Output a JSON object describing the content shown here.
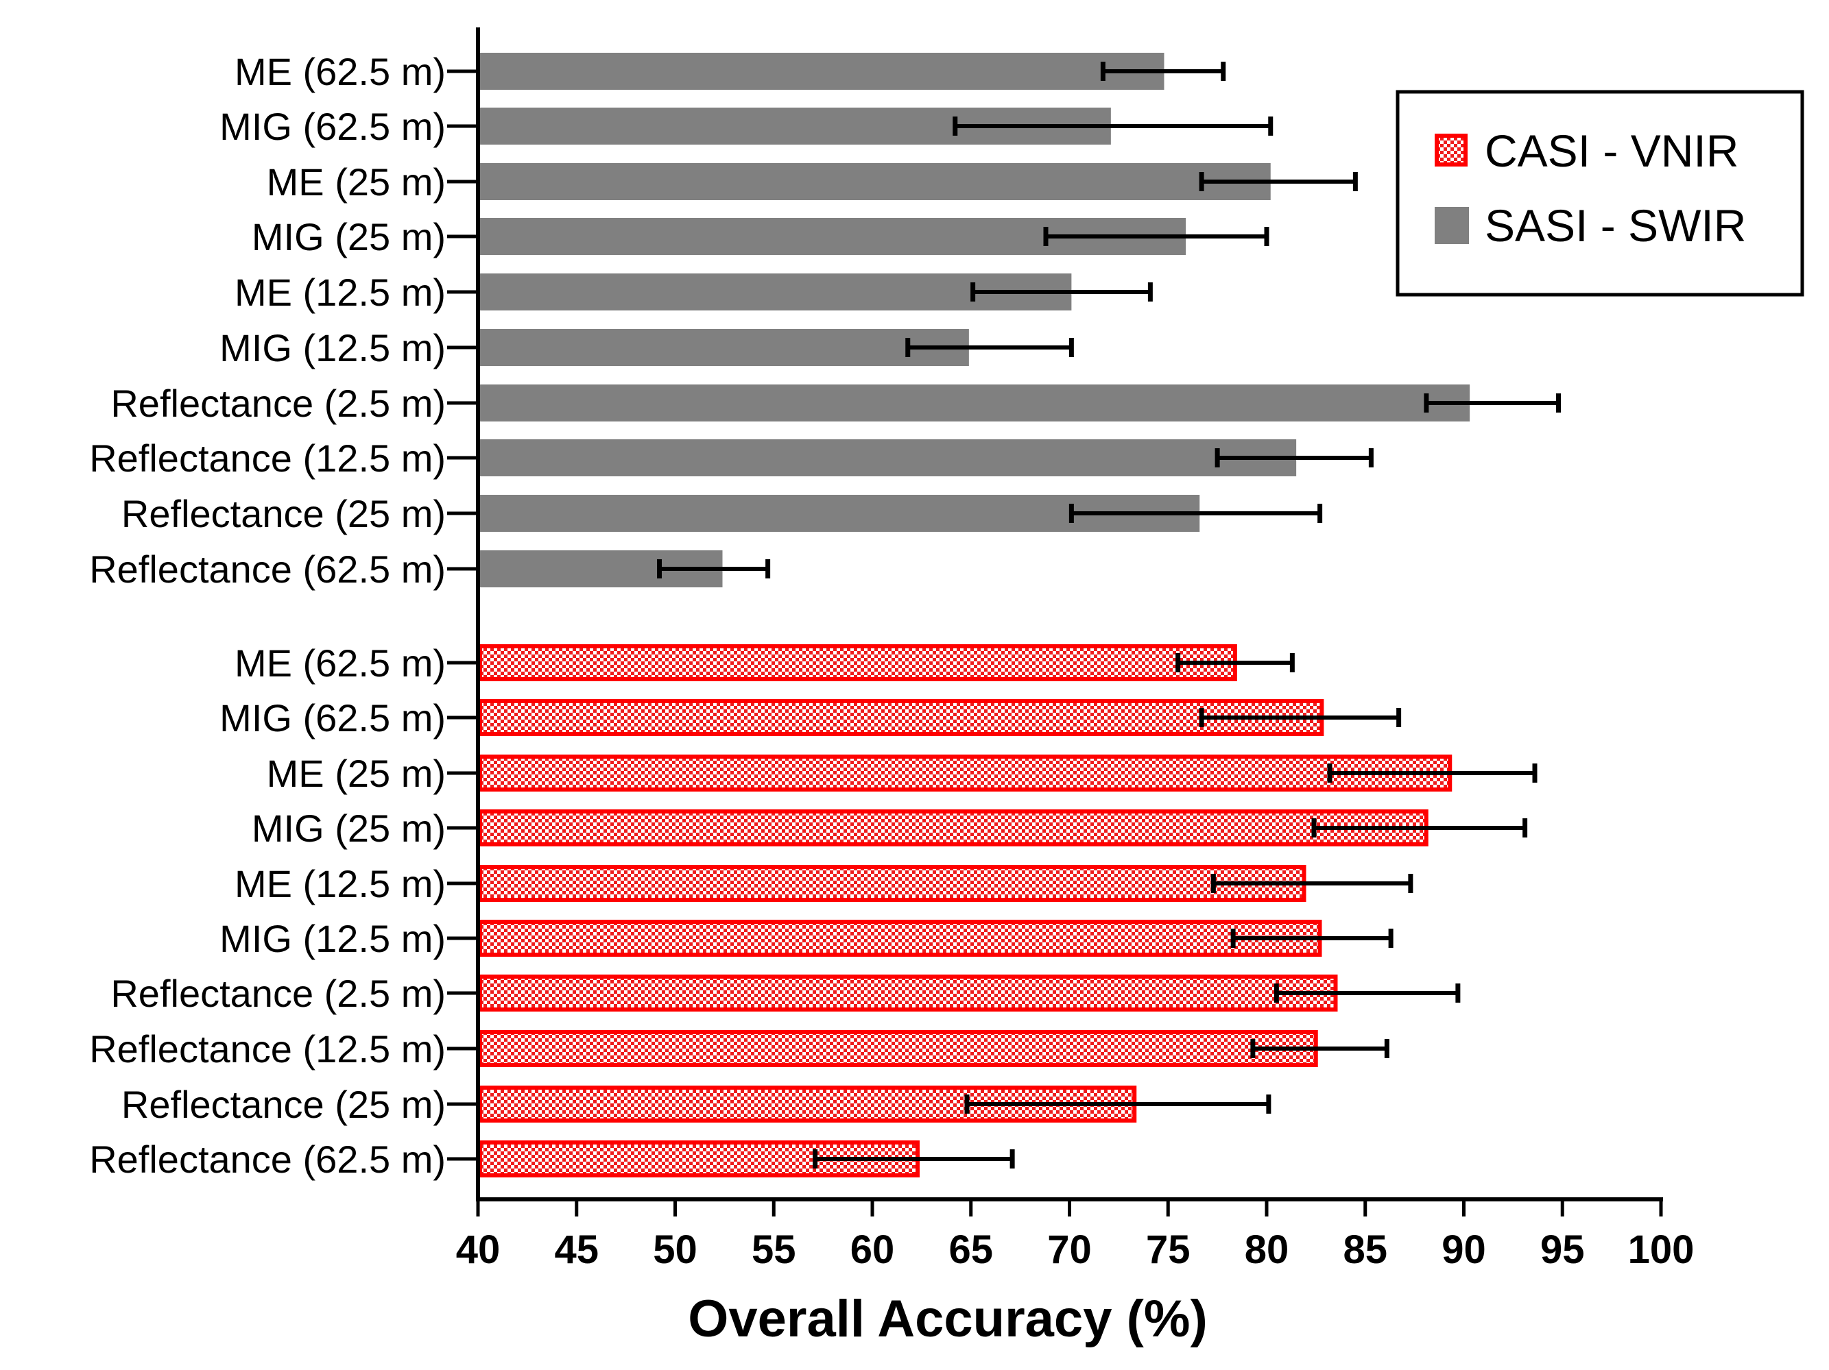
{
  "chart_data": {
    "type": "bar",
    "orientation": "horizontal",
    "title": "",
    "xlabel": "Overall Accuracy (%)",
    "ylabel": "",
    "xlim": [
      40,
      100
    ],
    "xticks": [
      "40",
      "45",
      "50",
      "55",
      "60",
      "65",
      "70",
      "75",
      "80",
      "85",
      "90",
      "95",
      "100"
    ],
    "grid": false,
    "legend_position": "top-right",
    "colors": {
      "casi_fill": "#ffffff",
      "casi_pattern": "#ee1c1c",
      "casi_border": "#ff0000",
      "sasi_fill": "#808080",
      "axis": "#000000"
    },
    "series": [
      {
        "name": "SASI - SWIR",
        "categories": [
          "ME (62.5 m)",
          "MIG (62.5 m)",
          "ME (25 m)",
          "MIG (25 m)",
          "ME (12.5 m)",
          "MIG (12.5 m)",
          "Reflectance (2.5 m)",
          "Reflectance (12.5 m)",
          "Reflectance (25 m)",
          "Reflectance (62.5 m)"
        ],
        "values": [
          74.8,
          72.1,
          80.2,
          75.9,
          70.1,
          64.9,
          90.3,
          81.5,
          76.6,
          52.4
        ],
        "error_low": [
          71.7,
          64.2,
          76.7,
          68.8,
          65.1,
          61.8,
          88.1,
          77.5,
          70.1,
          49.2
        ],
        "error_high": [
          77.8,
          80.2,
          84.5,
          80.0,
          74.1,
          70.1,
          94.8,
          85.3,
          82.7,
          54.7
        ]
      },
      {
        "name": "CASI - VNIR",
        "categories": [
          "ME (62.5 m)",
          "MIG (62.5 m)",
          "ME (25 m)",
          "MIG (25 m)",
          "ME (12.5 m)",
          "MIG (12.5 m)",
          "Reflectance (2.5 m)",
          "Reflectance (12.5 m)",
          "Reflectance (25 m)",
          "Reflectance (62.5 m)"
        ],
        "values": [
          78.5,
          82.9,
          89.4,
          88.2,
          82.0,
          82.8,
          83.6,
          82.6,
          73.4,
          62.4
        ],
        "error_low": [
          75.5,
          76.7,
          83.2,
          82.4,
          77.3,
          78.3,
          80.5,
          79.3,
          64.8,
          57.1
        ],
        "error_high": [
          81.3,
          86.7,
          93.6,
          93.1,
          87.3,
          86.3,
          89.7,
          86.1,
          80.1,
          67.1
        ]
      }
    ]
  }
}
